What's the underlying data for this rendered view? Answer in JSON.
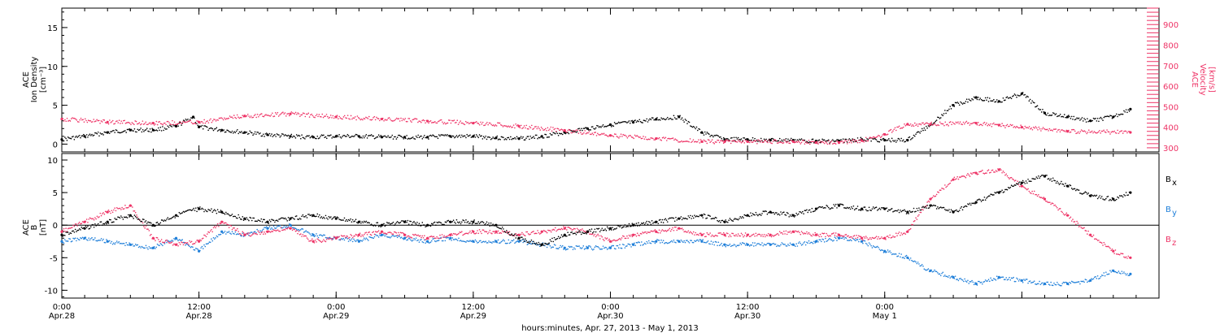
{
  "colors": {
    "black": "#000000",
    "pink": "#ee3366",
    "blue": "#1f7fd9"
  },
  "x_axis": {
    "title": "hours:minutes, Apr. 27, 2013 - May  1, 2013",
    "ticks": [
      {
        "time": "0:00",
        "date": "Apr.28"
      },
      {
        "time": "12:00",
        "date": "Apr.28"
      },
      {
        "time": "0:00",
        "date": "Apr.29"
      },
      {
        "time": "12:00",
        "date": "Apr.29"
      },
      {
        "time": "0:00",
        "date": "Apr.30"
      },
      {
        "time": "12:00",
        "date": "Apr.30"
      },
      {
        "time": "0:00",
        "date": "May 1"
      },
      {
        "time": "",
        "date": ""
      }
    ]
  },
  "chart_data": [
    {
      "type": "scatter",
      "title": "",
      "x_range_hours": [
        0,
        96
      ],
      "y_left": {
        "label_lines": [
          "ACE",
          "Ion Density",
          "[cm⁻³]"
        ],
        "ylim": [
          -1,
          17.5
        ],
        "ticks": [
          0,
          5,
          10,
          15
        ]
      },
      "y_right": {
        "label_lines": [
          "ACE",
          "Velocity",
          "[km/s]"
        ],
        "ylim": [
          280,
          980
        ],
        "ticks": [
          300,
          400,
          500,
          600,
          700,
          800,
          900
        ]
      },
      "series": [
        {
          "name": "Ion Density",
          "color": "#000000",
          "axis": "left",
          "x_hours": [
            0,
            2,
            4,
            6,
            8,
            10,
            11.5,
            12,
            14,
            16,
            18,
            20,
            22,
            24,
            26,
            28,
            30,
            32,
            34,
            36,
            38,
            40,
            42,
            44,
            46,
            48,
            50,
            52,
            54,
            56,
            58,
            60,
            62,
            64,
            66,
            68,
            70,
            72,
            74,
            76,
            78,
            80,
            82,
            84,
            86,
            88,
            90,
            92,
            93.5
          ],
          "y": [
            0.6,
            1.0,
            1.5,
            1.8,
            1.8,
            2.3,
            3.5,
            2.2,
            1.8,
            1.5,
            1.2,
            1.0,
            0.9,
            1.0,
            1.0,
            0.9,
            0.9,
            0.9,
            1.0,
            1.0,
            0.8,
            0.7,
            1.0,
            1.5,
            2.0,
            2.5,
            2.8,
            3.2,
            3.5,
            1.5,
            0.6,
            0.6,
            0.5,
            0.5,
            0.4,
            0.4,
            0.6,
            0.5,
            0.5,
            2.5,
            5.0,
            6.0,
            5.5,
            6.5,
            4.0,
            3.5,
            3.0,
            3.5,
            4.5
          ]
        },
        {
          "name": "Velocity",
          "color": "#ee3366",
          "axis": "right",
          "x_hours": [
            0,
            4,
            8,
            12,
            16,
            20,
            24,
            28,
            32,
            36,
            40,
            44,
            48,
            52,
            56,
            58,
            60,
            64,
            66,
            68,
            70,
            72,
            74,
            76,
            80,
            82,
            84,
            88,
            93.5
          ],
          "y": [
            440,
            425,
            420,
            425,
            455,
            465,
            450,
            440,
            430,
            420,
            405,
            385,
            360,
            345,
            330,
            330,
            330,
            330,
            325,
            325,
            335,
            365,
            415,
            415,
            420,
            410,
            400,
            380,
            375
          ]
        }
      ]
    },
    {
      "type": "scatter",
      "title": "",
      "x_range_hours": [
        0,
        96
      ],
      "y": {
        "label_lines": [
          "ACE",
          "B",
          "[nT]"
        ],
        "ylim": [
          -11.2,
          11
        ],
        "ticks": [
          -10,
          -5,
          0,
          5,
          10
        ]
      },
      "series": [
        {
          "name": "Bx",
          "color": "#000000",
          "x_hours": [
            0,
            2,
            4,
            6,
            8,
            10,
            12,
            14,
            16,
            18,
            20,
            22,
            24,
            26,
            28,
            30,
            32,
            34,
            36,
            38,
            40,
            42,
            44,
            46,
            48,
            50,
            52,
            54,
            56,
            58,
            60,
            62,
            64,
            66,
            68,
            70,
            72,
            74,
            76,
            78,
            80,
            82,
            84,
            86,
            88,
            90,
            92,
            93.5
          ],
          "y": [
            -1.5,
            -0.5,
            0.5,
            1.5,
            0,
            1.5,
            2.5,
            2.0,
            1.0,
            0.5,
            1.0,
            1.5,
            1.0,
            0.5,
            0,
            0.5,
            0,
            0.5,
            0.5,
            0,
            -2.0,
            -3.0,
            -1.5,
            -1.0,
            -0.5,
            0,
            0.5,
            1.0,
            1.5,
            0.5,
            1.5,
            2.0,
            1.5,
            2.5,
            3.0,
            2.5,
            2.5,
            2.0,
            3.0,
            2.0,
            3.5,
            5.0,
            6.5,
            7.5,
            6.0,
            4.5,
            4.0,
            5.0
          ]
        },
        {
          "name": "By",
          "color": "#1f7fd9",
          "x_hours": [
            0,
            2,
            4,
            6,
            8,
            10,
            12,
            14,
            16,
            18,
            20,
            22,
            24,
            26,
            28,
            30,
            32,
            34,
            36,
            38,
            40,
            42,
            44,
            46,
            48,
            50,
            52,
            54,
            56,
            58,
            60,
            62,
            64,
            66,
            68,
            70,
            72,
            74,
            76,
            78,
            80,
            82,
            84,
            86,
            88,
            90,
            92,
            93.5
          ],
          "y": [
            -2.5,
            -2.0,
            -2.5,
            -3.0,
            -3.5,
            -2.0,
            -4.0,
            -1.0,
            -1.5,
            -0.5,
            0,
            -1.5,
            -2.0,
            -2.5,
            -1.5,
            -2.0,
            -2.5,
            -2.0,
            -2.5,
            -2.5,
            -2.5,
            -3.0,
            -3.5,
            -3.5,
            -3.5,
            -3.0,
            -2.5,
            -2.5,
            -2.5,
            -3.0,
            -3.0,
            -3.0,
            -3.0,
            -2.5,
            -2.0,
            -2.5,
            -4.0,
            -5.0,
            -7.0,
            -8.0,
            -9.0,
            -8.0,
            -8.5,
            -9.0,
            -9.0,
            -8.5,
            -7.0,
            -7.5
          ]
        },
        {
          "name": "Bz",
          "color": "#ee3366",
          "x_hours": [
            0,
            2,
            4,
            6,
            8,
            10,
            12,
            14,
            16,
            18,
            20,
            22,
            24,
            26,
            28,
            30,
            32,
            34,
            36,
            38,
            40,
            42,
            44,
            46,
            48,
            50,
            52,
            54,
            56,
            58,
            60,
            62,
            64,
            66,
            68,
            70,
            72,
            74,
            76,
            78,
            80,
            82,
            84,
            86,
            88,
            90,
            92,
            93.5
          ],
          "y": [
            -1.0,
            0.5,
            2.0,
            3.0,
            -2.0,
            -3.0,
            -2.5,
            0.5,
            -1.5,
            -1.0,
            -0.5,
            -2.5,
            -2.0,
            -1.5,
            -1.0,
            -1.5,
            -2.0,
            -1.5,
            -1.0,
            -1.0,
            -1.5,
            -1.0,
            -0.5,
            -1.0,
            -2.5,
            -1.5,
            -1.0,
            -0.5,
            -1.5,
            -1.5,
            -1.5,
            -1.5,
            -1.0,
            -1.5,
            -1.5,
            -2.0,
            -2.0,
            -1.0,
            4.0,
            7.0,
            8.0,
            8.5,
            6.0,
            4.0,
            1.5,
            -1.5,
            -4.0,
            -5.0
          ]
        }
      ],
      "legend_labels": [
        "B",
        "B",
        "B"
      ],
      "legend_subscripts": [
        "x",
        "y",
        "z"
      ]
    }
  ]
}
